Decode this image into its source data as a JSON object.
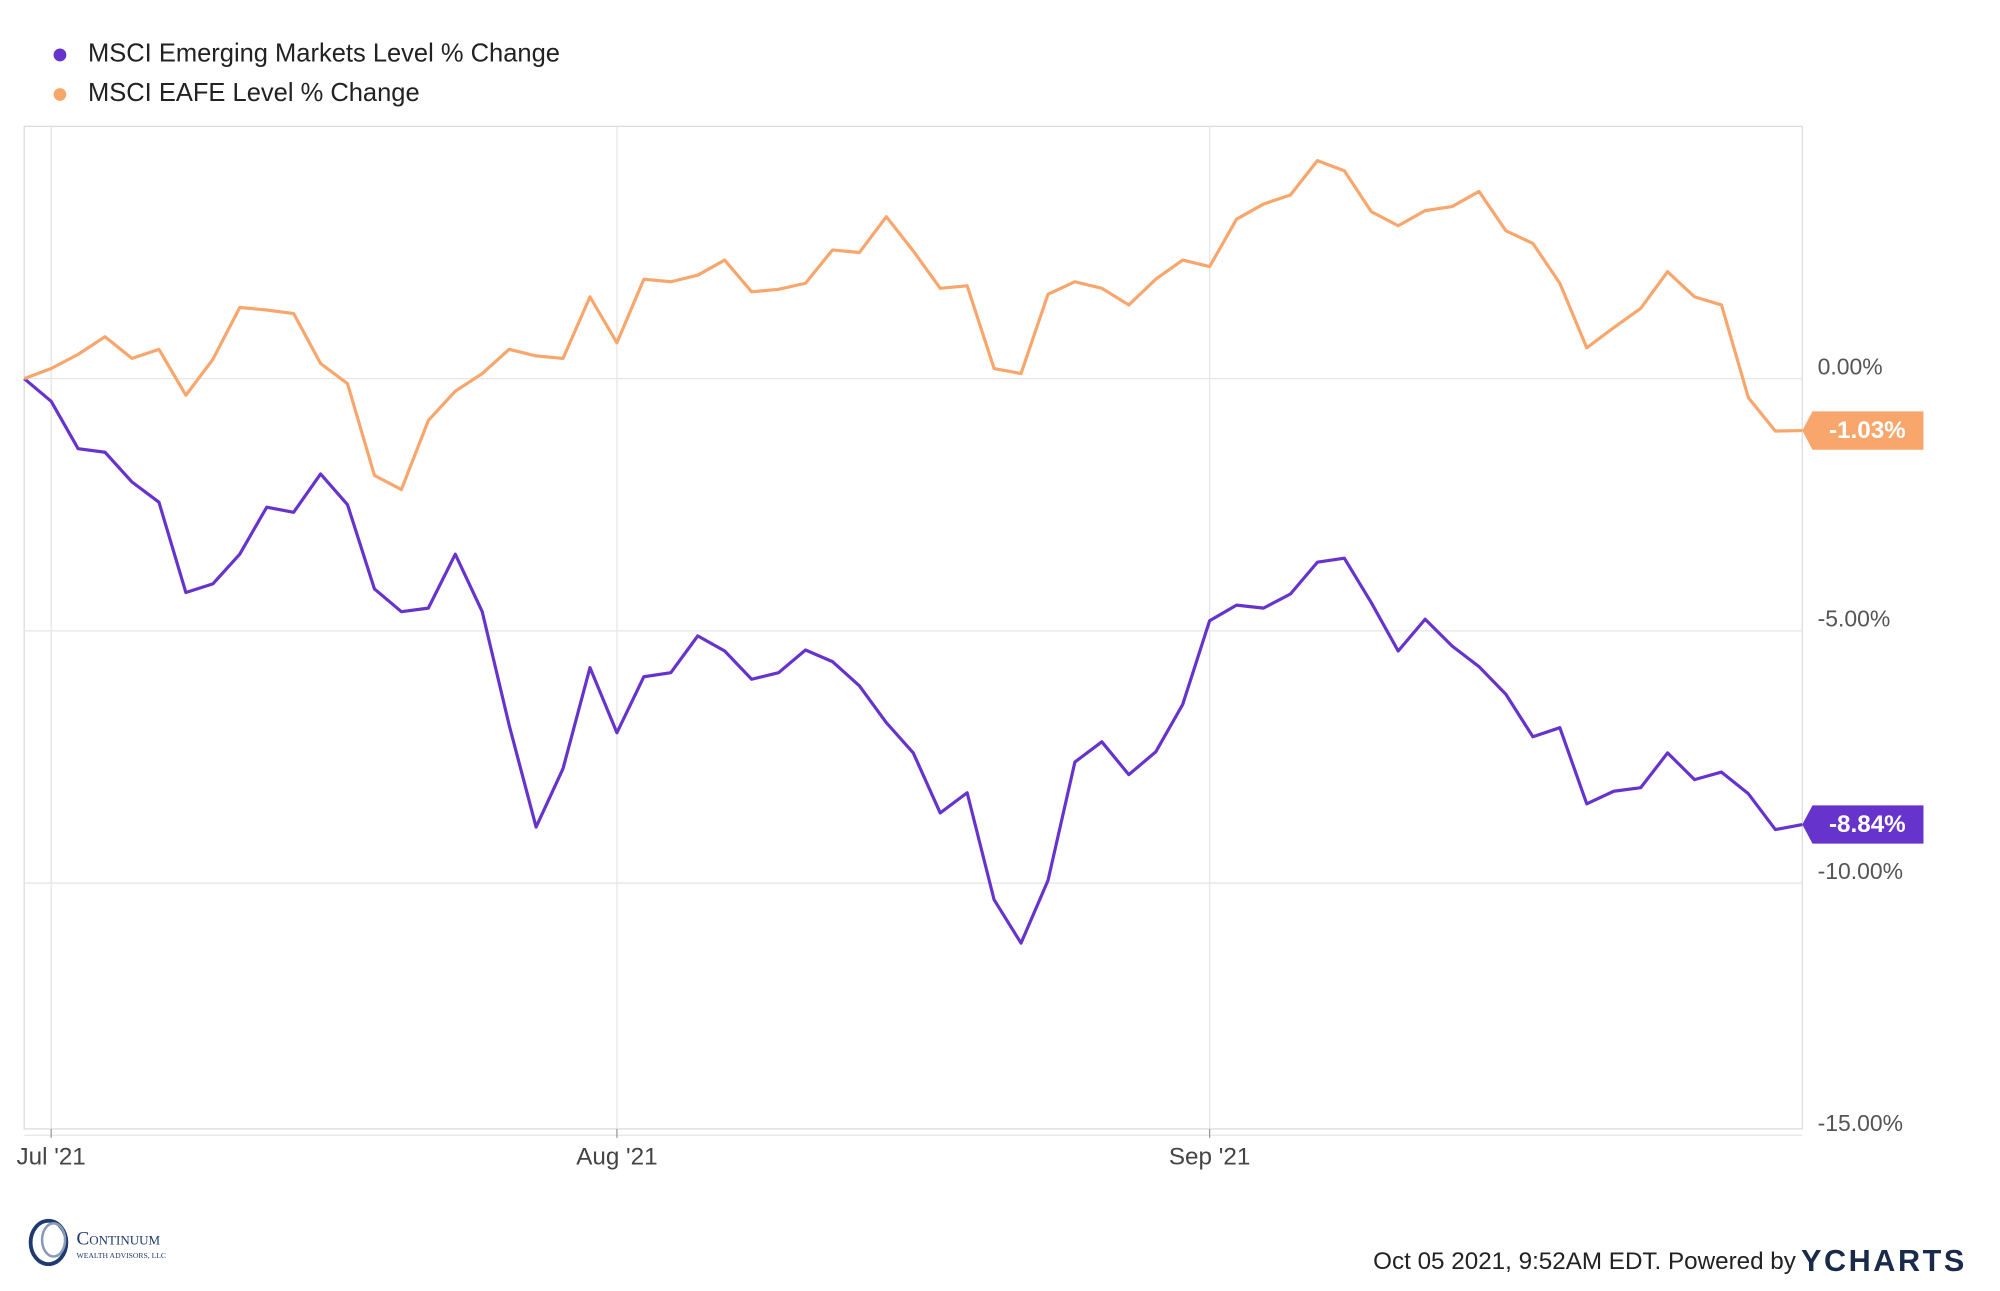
{
  "chart_data": {
    "type": "line",
    "categories": [
      null,
      "Jul '21",
      null,
      null,
      null,
      null,
      null,
      null,
      null,
      null,
      null,
      null,
      null,
      null,
      null,
      null,
      null,
      null,
      null,
      null,
      null,
      null,
      "Aug '21",
      null,
      null,
      null,
      null,
      null,
      null,
      null,
      null,
      null,
      null,
      null,
      null,
      null,
      null,
      null,
      null,
      null,
      null,
      null,
      null,
      null,
      "Sep '21",
      null,
      null,
      null,
      null,
      null,
      null,
      null,
      null,
      null,
      null,
      null,
      null,
      null,
      null,
      null,
      null,
      null,
      null,
      null,
      null,
      null,
      null
    ],
    "series": [
      {
        "name": "MSCI Emerging Markets Level % Change",
        "color": "#6633cc",
        "end_label": "-8.84%",
        "values": [
          0,
          -0.45,
          -1.39,
          -1.46,
          -2.05,
          -2.45,
          -4.24,
          -4.07,
          -3.48,
          -2.55,
          -2.65,
          -1.89,
          -2.5,
          -4.17,
          -4.62,
          -4.55,
          -3.48,
          -4.62,
          -6.87,
          -8.89,
          -7.73,
          -5.73,
          -7.02,
          -5.91,
          -5.83,
          -5.1,
          -5.4,
          -5.96,
          -5.83,
          -5.38,
          -5.61,
          -6.09,
          -6.82,
          -7.42,
          -8.61,
          -8.21,
          -10.33,
          -11.19,
          -9.95,
          -7.6,
          -7.2,
          -7.85,
          -7.4,
          -6.46,
          -4.8,
          -4.49,
          -4.55,
          -4.27,
          -3.64,
          -3.56,
          -4.44,
          -5.4,
          -4.77,
          -5.3,
          -5.71,
          -6.26,
          -7.1,
          -6.92,
          -8.43,
          -8.18,
          -8.11,
          -7.42,
          -7.95,
          -7.8,
          -8.23,
          -8.94,
          -8.84
        ]
      },
      {
        "name": "MSCI EAFE Level % Change",
        "color": "#f9a66c",
        "end_label": "-1.03%",
        "values": [
          0,
          0.2,
          0.48,
          0.83,
          0.4,
          0.58,
          -0.33,
          0.38,
          1.41,
          1.36,
          1.29,
          0.3,
          -0.1,
          -1.92,
          -2.2,
          -0.83,
          -0.25,
          0.1,
          0.58,
          0.45,
          0.4,
          1.62,
          0.71,
          1.97,
          1.92,
          2.05,
          2.35,
          1.72,
          1.77,
          1.89,
          2.55,
          2.5,
          3.21,
          2.53,
          1.79,
          1.84,
          0.2,
          0.1,
          1.67,
          1.92,
          1.79,
          1.46,
          1.97,
          2.35,
          2.22,
          3.16,
          3.46,
          3.64,
          4.32,
          4.12,
          3.31,
          3.03,
          3.33,
          3.41,
          3.71,
          2.93,
          2.68,
          1.89,
          0.61,
          1.01,
          1.39,
          2.12,
          1.62,
          1.46,
          -0.38,
          -1.04,
          -1.03
        ]
      }
    ],
    "ylim": [
      -15,
      5
    ],
    "yticks": [
      {
        "value": 0,
        "label": "0.00%"
      },
      {
        "value": -5,
        "label": "-5.00%"
      },
      {
        "value": -10,
        "label": "-10.00%"
      },
      {
        "value": -15,
        "label": "-15.00%"
      }
    ],
    "grid": true,
    "legend": "top-left"
  },
  "footer": {
    "timestamp": "Oct 05 2021, 9:52AM EDT. Powered by",
    "brand": "YCHARTS",
    "logo_name": "Continuum",
    "logo_sub": "WEALTH ADVISORS, LLC"
  }
}
